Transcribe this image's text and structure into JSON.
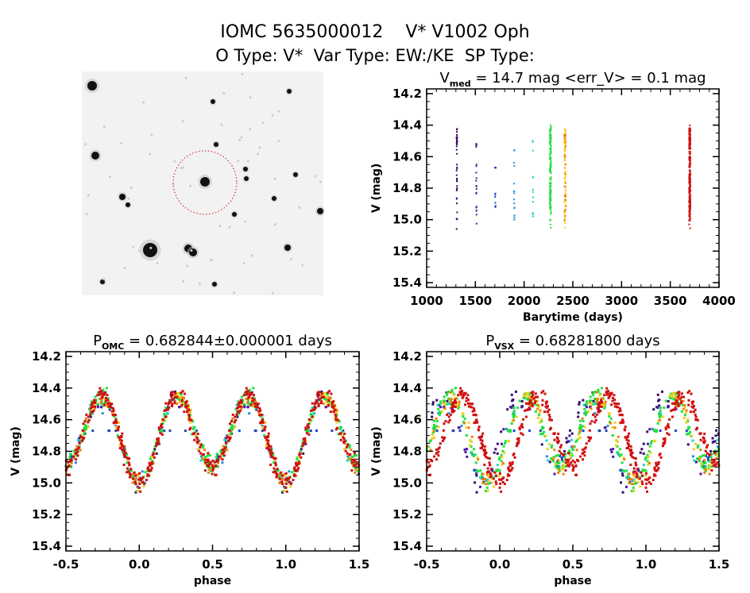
{
  "header": {
    "line1": "IOMC 5635000012    V* V1002 Oph",
    "line2": "O Type: V*  Var Type: EW:/KE  SP Type:"
  },
  "finder_image": {
    "icon": "star-field-image",
    "circle_color": "#d01010"
  },
  "chart_data": [
    {
      "type": "scatter",
      "title_prefix": "V",
      "title_sub": "med",
      "title_rest": " = 14.7 mag <err_V> = 0.1 mag",
      "xlabel": "Barytime (days)",
      "ylabel": "V (mag)",
      "xlim": [
        1000,
        4000
      ],
      "ylim": [
        14.17,
        15.43
      ],
      "y_inverted": true,
      "xticks": [
        "1000",
        "1500",
        "2000",
        "2500",
        "3000",
        "3500",
        "4000"
      ],
      "yticks": [
        "14.2",
        "14.4",
        "14.6",
        "14.8",
        "15.0",
        "15.2",
        "15.4"
      ],
      "seasons": [
        {
          "barytime": 1310,
          "mag_range": [
            14.37,
            15.27
          ],
          "count": 40,
          "color": "#3a0a6a"
        },
        {
          "barytime": 1510,
          "mag_range": [
            14.52,
            15.04
          ],
          "count": 25,
          "color": "#4a1aa0"
        },
        {
          "barytime": 1705,
          "mag_range": [
            14.67,
            15.07
          ],
          "count": 15,
          "color": "#2040c0"
        },
        {
          "barytime": 1900,
          "mag_range": [
            14.56,
            15.0
          ],
          "count": 16,
          "color": "#2090e0"
        },
        {
          "barytime": 2090,
          "mag_range": [
            14.5,
            14.98
          ],
          "count": 12,
          "color": "#20d0d0"
        },
        {
          "barytime": 2270,
          "mag_range": [
            14.32,
            15.1
          ],
          "count": 150,
          "color": "#20e040"
        },
        {
          "barytime": 2420,
          "mag_range": [
            14.35,
            15.05
          ],
          "count": 100,
          "color": "#f0d020"
        },
        {
          "barytime": 3700,
          "mag_range": [
            14.3,
            15.16
          ],
          "count": 250,
          "color": "#d01010"
        }
      ]
    },
    {
      "type": "scatter",
      "title_prefix": "P",
      "title_sub": "OMC",
      "title_rest": " = 0.682844±0.000001 days",
      "period_days": 0.682844,
      "xlabel": "phase",
      "ylabel": "V (mag)",
      "xlim": [
        -0.5,
        1.5
      ],
      "ylim": [
        14.17,
        15.43
      ],
      "y_inverted": true,
      "xticks": [
        "-0.5",
        "0.0",
        "0.5",
        "1.0",
        "1.5"
      ],
      "yticks": [
        "14.2",
        "14.4",
        "14.6",
        "14.8",
        "15.0",
        "15.2",
        "15.4"
      ],
      "light_curve": {
        "max_mag": 14.45,
        "primary_min_mag": 15.0,
        "secondary_min_mag": 14.9,
        "scatter_mag": 0.06
      }
    },
    {
      "type": "scatter",
      "title_prefix": "P",
      "title_sub": "VSX",
      "title_rest": " = 0.68281800 days",
      "period_days": 0.682818,
      "xlabel": "phase",
      "ylabel": "V (mag)",
      "xlim": [
        -0.5,
        1.5
      ],
      "ylim": [
        14.17,
        15.43
      ],
      "y_inverted": true,
      "xticks": [
        "-0.5",
        "0.0",
        "0.5",
        "1.0",
        "1.5"
      ],
      "yticks": [
        "14.2",
        "14.4",
        "14.6",
        "14.8",
        "15.0",
        "15.2",
        "15.4"
      ]
    }
  ]
}
